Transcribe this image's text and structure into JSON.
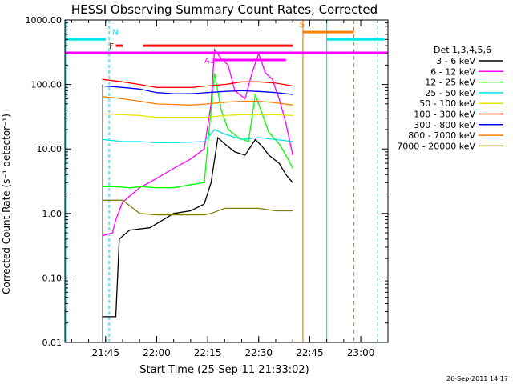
{
  "chart_data": {
    "type": "line",
    "title": "HESSI Observing Summary Count Rates, Corrected",
    "xlabel": "Start Time (25-Sep-11 21:33:02)",
    "ylabel": "Corrected Count Rate (s⁻¹ detector⁻¹)",
    "y_scale": "log",
    "ylim": [
      0.01,
      1000
    ],
    "xlim": [
      "21:33:02",
      "23:08:00"
    ],
    "x_tick_labels": [
      "21:45",
      "22:00",
      "22:15",
      "22:30",
      "22:45",
      "23:00"
    ],
    "y_tick_labels": [
      "0.01",
      "0.10",
      "1.00",
      "10.00",
      "100.00",
      "1000.00"
    ],
    "y_tick_values": [
      0.01,
      0.1,
      1,
      10,
      100,
      1000
    ],
    "legend_title": "Det 1,3,4,5,6",
    "legend_position": "right",
    "timestamp": "26-Sep-2011 14:17",
    "flags": [
      {
        "label": "N",
        "color": "#00e5e5",
        "level": 500
      },
      {
        "label": "F",
        "color": "#ff0000",
        "level": 400
      },
      {
        "label": "S",
        "color": "#ff7f00",
        "level": 650
      },
      {
        "label": "A1",
        "color": "#ff00ff",
        "level": 240
      }
    ],
    "series": [
      {
        "name": "3 - 6 keV",
        "color": "#000000",
        "x": [
          "21:44",
          "21:47",
          "21:48",
          "21:49",
          "21:52",
          "21:58",
          "22:02",
          "22:05",
          "22:10",
          "22:14",
          "22:16",
          "22:18",
          "22:20",
          "22:23",
          "22:26",
          "22:29",
          "22:31",
          "22:33",
          "22:36",
          "22:38",
          "22:40"
        ],
        "y": [
          0.025,
          0.025,
          0.025,
          0.4,
          0.55,
          0.6,
          0.8,
          1.0,
          1.1,
          1.4,
          3,
          15,
          12,
          9,
          8,
          14,
          11,
          8,
          6,
          4,
          3
        ]
      },
      {
        "name": "6 - 12 keV",
        "color": "#ff00ff",
        "x": [
          "21:44",
          "21:47",
          "21:48",
          "21:50",
          "21:55",
          "22:00",
          "22:05",
          "22:10",
          "22:14",
          "22:16",
          "22:17",
          "22:19",
          "22:21",
          "22:23",
          "22:26",
          "22:28",
          "22:30",
          "22:32",
          "22:34",
          "22:36",
          "22:38",
          "22:40"
        ],
        "y": [
          0.45,
          0.5,
          0.8,
          1.5,
          2.5,
          3.5,
          5,
          7,
          10,
          50,
          350,
          250,
          200,
          80,
          60,
          150,
          300,
          150,
          120,
          60,
          25,
          8
        ]
      },
      {
        "name": "12 - 25 keV",
        "color": "#00ff00",
        "x": [
          "21:44",
          "21:48",
          "21:52",
          "21:56",
          "22:00",
          "22:05",
          "22:10",
          "22:14",
          "22:16",
          "22:17",
          "22:19",
          "22:21",
          "22:24",
          "22:27",
          "22:29",
          "22:31",
          "22:33",
          "22:36",
          "22:38",
          "22:40"
        ],
        "y": [
          2.6,
          2.6,
          2.5,
          2.6,
          2.5,
          2.5,
          2.8,
          3,
          40,
          150,
          40,
          20,
          15,
          13,
          70,
          35,
          18,
          12,
          8,
          5
        ]
      },
      {
        "name": "25 - 50 keV",
        "color": "#00e5e5",
        "x": [
          "21:44",
          "21:50",
          "21:55",
          "22:00",
          "22:05",
          "22:10",
          "22:14",
          "22:17",
          "22:20",
          "22:25",
          "22:30",
          "22:35",
          "22:40"
        ],
        "y": [
          14,
          13,
          13,
          12.5,
          12.5,
          12.8,
          13,
          20,
          17,
          14,
          15,
          14,
          13
        ]
      },
      {
        "name": "50 - 100 keV",
        "color": "#e5e500",
        "x": [
          "21:44",
          "21:50",
          "21:55",
          "22:00",
          "22:05",
          "22:10",
          "22:15",
          "22:20",
          "22:25",
          "22:30",
          "22:35",
          "22:40"
        ],
        "y": [
          35,
          34,
          33,
          31,
          31,
          31,
          31,
          33,
          34,
          34,
          34,
          33
        ]
      },
      {
        "name": "100 - 300 keV",
        "color": "#ff0000",
        "x": [
          "21:44",
          "21:50",
          "21:55",
          "22:00",
          "22:05",
          "22:10",
          "22:15",
          "22:20",
          "22:25",
          "22:30",
          "22:35",
          "22:40"
        ],
        "y": [
          120,
          110,
          100,
          90,
          90,
          90,
          95,
          100,
          110,
          110,
          105,
          95
        ]
      },
      {
        "name": "300 - 800 keV",
        "color": "#0000ff",
        "x": [
          "21:44",
          "21:50",
          "21:55",
          "22:00",
          "22:05",
          "22:10",
          "22:15",
          "22:20",
          "22:25",
          "22:30",
          "22:35",
          "22:40"
        ],
        "y": [
          95,
          90,
          85,
          75,
          72,
          72,
          75,
          78,
          80,
          78,
          75,
          70
        ]
      },
      {
        "name": "800 - 7000 keV",
        "color": "#ff7f00",
        "x": [
          "21:44",
          "21:50",
          "21:55",
          "22:00",
          "22:05",
          "22:10",
          "22:15",
          "22:20",
          "22:25",
          "22:30",
          "22:35",
          "22:40"
        ],
        "y": [
          65,
          60,
          55,
          50,
          49,
          48,
          50,
          53,
          55,
          55,
          52,
          48
        ]
      },
      {
        "name": "7000 - 20000 keV",
        "color": "#808000",
        "x": [
          "21:44",
          "21:50",
          "21:55",
          "22:00",
          "22:05",
          "22:10",
          "22:14",
          "22:16",
          "22:20",
          "22:25",
          "22:30",
          "22:35",
          "22:40"
        ],
        "y": [
          1.6,
          1.6,
          1.0,
          0.95,
          0.95,
          0.95,
          0.95,
          1.0,
          1.2,
          1.2,
          1.2,
          1.1,
          1.1
        ]
      }
    ]
  }
}
